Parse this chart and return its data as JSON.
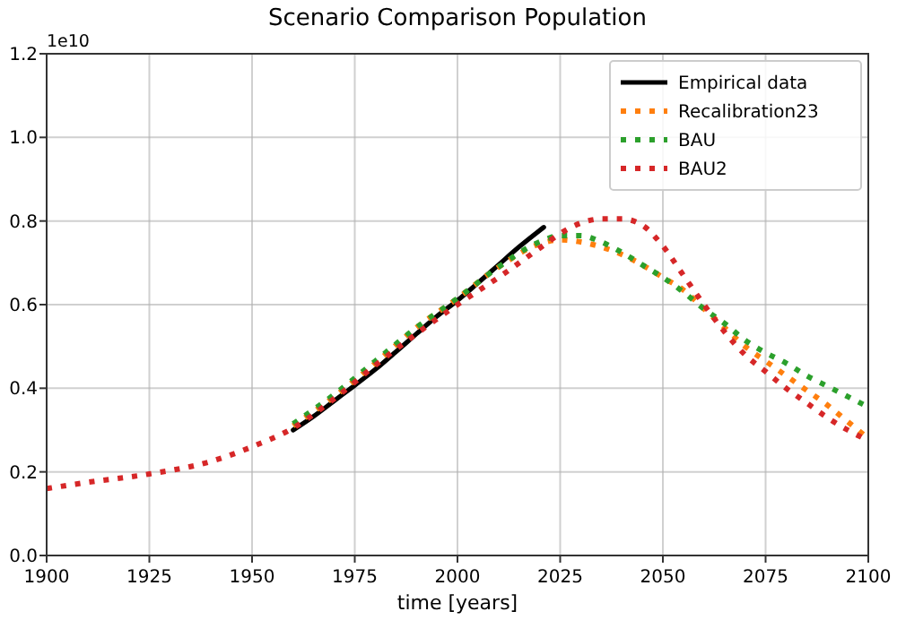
{
  "chart_data": {
    "type": "line",
    "title": "Scenario Comparison Population",
    "xlabel": "time [years]",
    "annotations": [
      "1e10"
    ],
    "xlim": [
      1900,
      2100
    ],
    "xticks": [
      1900,
      1925,
      1950,
      1975,
      2000,
      2025,
      2050,
      2075,
      2100
    ],
    "ylim": [
      0,
      1.2
    ],
    "yticks": [
      {
        "value": 0,
        "label": "0.0"
      },
      {
        "value": 0.2,
        "label": "0.2"
      },
      {
        "value": 0.4,
        "label": "0.4"
      },
      {
        "value": 0.6,
        "label": "0.6"
      },
      {
        "value": 0.8,
        "label": "0.8"
      },
      {
        "value": 1,
        "label": "1.0"
      },
      {
        "value": 1.2,
        "label": "1.2"
      }
    ],
    "grid": true,
    "legend": "top right",
    "marker": "none",
    "series": [
      {
        "name": "Empirical data",
        "color": "#000000",
        "line_style": "solid",
        "x": [
          1960,
          1965,
          1970,
          1975,
          1980,
          1985,
          1990,
          1995,
          2000,
          2005,
          2010,
          2015,
          2021
        ],
        "values": [
          0.3,
          0.333,
          0.37,
          0.407,
          0.445,
          0.487,
          0.53,
          0.572,
          0.61,
          0.652,
          0.695,
          0.738,
          0.785
        ]
      },
      {
        "name": "Recalibration23",
        "color": "#ff7f0e",
        "line_style": "dotted",
        "x": [
          1960,
          1970,
          1980,
          1990,
          2000,
          2010,
          2020,
          2025,
          2030,
          2035,
          2040,
          2045,
          2050,
          2055,
          2060,
          2065,
          2070,
          2075,
          2080,
          2085,
          2090,
          2095,
          2100
        ],
        "values": [
          0.31,
          0.38,
          0.46,
          0.545,
          0.615,
          0.69,
          0.745,
          0.755,
          0.75,
          0.738,
          0.72,
          0.695,
          0.665,
          0.635,
          0.59,
          0.545,
          0.5,
          0.465,
          0.43,
          0.395,
          0.36,
          0.32,
          0.28
        ]
      },
      {
        "name": "BAU",
        "color": "#2ca02c",
        "line_style": "dotted",
        "x": [
          1960,
          1970,
          1980,
          1990,
          2000,
          2010,
          2020,
          2025,
          2030,
          2035,
          2040,
          2045,
          2050,
          2055,
          2060,
          2065,
          2070,
          2075,
          2080,
          2085,
          2090,
          2095,
          2100
        ],
        "values": [
          0.315,
          0.385,
          0.465,
          0.545,
          0.615,
          0.69,
          0.75,
          0.765,
          0.765,
          0.75,
          0.725,
          0.695,
          0.665,
          0.63,
          0.59,
          0.555,
          0.515,
          0.485,
          0.46,
          0.43,
          0.405,
          0.38,
          0.355
        ]
      },
      {
        "name": "BAU2",
        "color": "#d62728",
        "line_style": "dotted",
        "x": [
          1900,
          1910,
          1925,
          1940,
          1950,
          1960,
          1970,
          1980,
          1990,
          2000,
          2010,
          2020,
          2025,
          2030,
          2035,
          2040,
          2045,
          2050,
          2055,
          2060,
          2065,
          2070,
          2075,
          2080,
          2085,
          2090,
          2095,
          2100
        ],
        "values": [
          0.16,
          0.175,
          0.195,
          0.225,
          0.26,
          0.305,
          0.375,
          0.455,
          0.53,
          0.6,
          0.665,
          0.735,
          0.77,
          0.795,
          0.805,
          0.805,
          0.79,
          0.74,
          0.67,
          0.6,
          0.535,
          0.48,
          0.44,
          0.4,
          0.365,
          0.33,
          0.3,
          0.275
        ]
      }
    ]
  }
}
